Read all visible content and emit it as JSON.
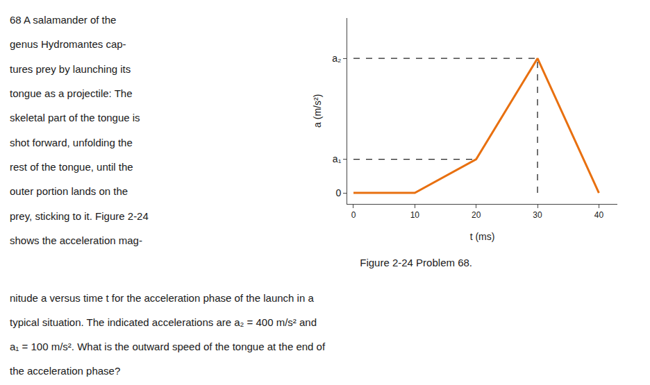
{
  "chart_data": {
    "type": "line",
    "title": "Figure 2-24 Problem 68.",
    "x_label": "t (ms)",
    "y_label": "a (m/s²)",
    "annotations": [
      "68 A salamander of the",
      "genus Hydromantes cap-",
      "tures prey by launching its",
      "tongue as a projectile: The",
      "skeletal part of the tongue is",
      "shot forward, unfolding the",
      "rest of the tongue, until the",
      "outer portion lands on the",
      "prey, sticking to it. Figure 2-24",
      "shows the acceleration mag-",
      "nitude a versus time t for the acceleration phase of the launch in a",
      "typical situation. The indicated accelerations are a₂ = 400 m/s² and",
      "a₁ = 100 m/s². What is the outward speed of the tongue at the end of",
      "the acceleration phase?"
    ],
    "series": [
      {
        "x": [
          0,
          10,
          20,
          30,
          40
        ],
        "values": [
          0.0,
          0.0,
          0.25,
          1.0,
          0.0
        ],
        "color": "#E87010",
        "line_style": "solid"
      },
      {
        "x": [
          0,
          30
        ],
        "values": [
          1.0,
          1.0
        ],
        "color": "#222222",
        "line_style": "dashed"
      },
      {
        "x": [
          0,
          20
        ],
        "values": [
          0.25,
          0.25
        ],
        "color": "#222222",
        "line_style": "dashed"
      },
      {
        "x": [
          30,
          30
        ],
        "values": [
          0,
          1.0
        ],
        "color": "#222222",
        "line_style": "dashed"
      }
    ],
    "xlim": [
      -1,
      43
    ],
    "ylim": [
      -0.08,
      1.3
    ],
    "xticks": [
      0,
      10,
      20,
      30,
      40
    ],
    "yticks": [
      {
        "value": 1.0,
        "label": "a₂"
      },
      {
        "value": 0.25,
        "label": "a₁"
      },
      0
    ],
    "grid": false,
    "legend": false
  }
}
